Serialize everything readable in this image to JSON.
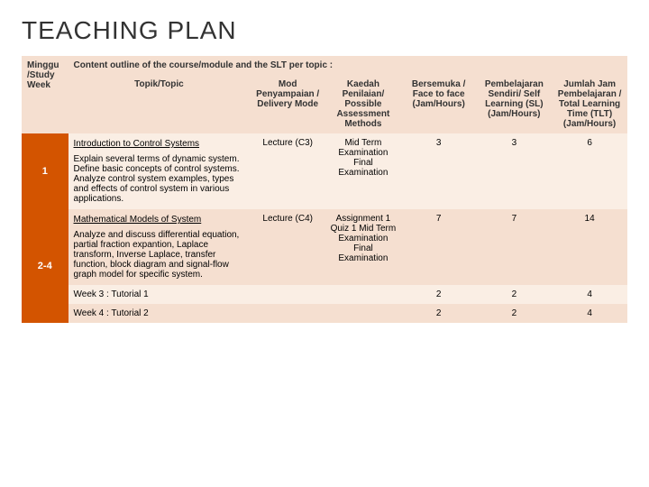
{
  "title": "TEACHING PLAN",
  "headers": {
    "week": "Minggu /Study Week",
    "outline": "Content outline of the course/module and the SLT per topic :",
    "topic": "Topik/Topic",
    "delivery": "Mod Penyampaian / Delivery Mode",
    "assessment": "Kaedah Penilaian/ Possible Assessment Methods",
    "facetoface": "Bersemuka / Face to face (Jam/Hours)",
    "selflearning": "Pembelajaran Sendiri/ Self Learning (SL) (Jam/Hours)",
    "tlt": "Jumlah Jam Pembelajaran / Total Learning Time (TLT) (Jam/Hours)"
  },
  "rows": [
    {
      "week": "1",
      "topic_title": "Introduction to Control Systems",
      "topic_body": "Explain several terms of dynamic system. Define basic concepts of control systems. Analyze control system examples, types and effects of control system in various applications.",
      "delivery": "Lecture (C3)",
      "assessment": "Mid Term Examination Final Examination",
      "f2f": "3",
      "sl": "3",
      "tlt": "6",
      "shade": "c1"
    },
    {
      "week": "2-4",
      "topic_title": "Mathematical Models of System",
      "topic_body": "Analyze and discuss differential equation, partial fraction expantion, Laplace transform, Inverse Laplace, transfer function, block diagram and signal-flow graph model for specific system.",
      "delivery": "Lecture (C4)",
      "assessment": "Assignment 1 Quiz 1 Mid Term Examination Final Examination",
      "f2f": "7",
      "sl": "7",
      "tlt": "14",
      "shade": "c2",
      "tutorials": [
        {
          "label": "Week 3 : Tutorial 1",
          "f2f": "2",
          "sl": "2",
          "tlt": "4",
          "shade": "c1"
        },
        {
          "label": "Week 4 : Tutorial 2",
          "f2f": "2",
          "sl": "2",
          "tlt": "4",
          "shade": "c2"
        }
      ]
    }
  ]
}
